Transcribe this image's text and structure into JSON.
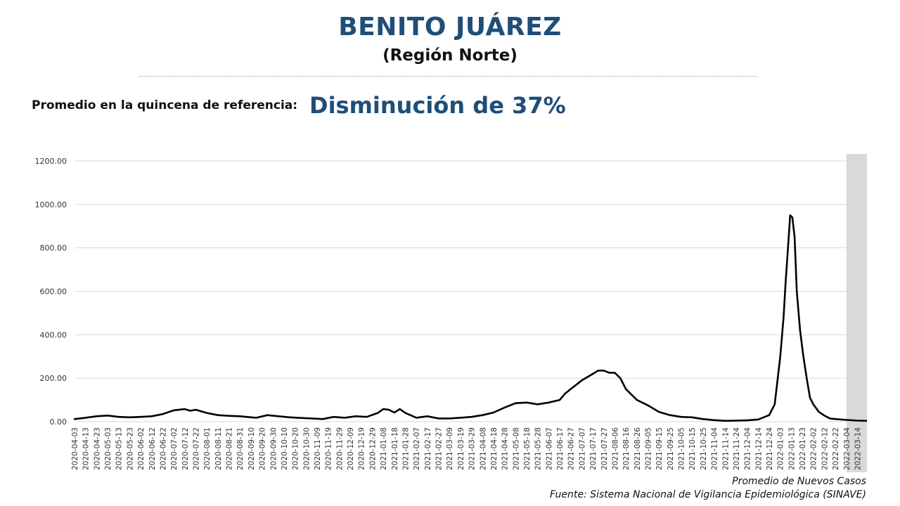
{
  "header": {
    "title": "BENITO JUÁREZ",
    "subtitle": "(Región Norte)"
  },
  "reference": {
    "label": "Promedio en la quincena de referencia:",
    "value": "Disminución de 37%"
  },
  "footer": {
    "series_label": "Promedio de Nuevos Casos",
    "source": "Fuente: Sistema Nacional de Vigilancia Epidemiológica (SINAVE)"
  },
  "colors": {
    "title": "#1f4e79",
    "line": "#000000",
    "shade": "#d9d9d9",
    "grid": "#d9d9d9"
  },
  "chart_data": {
    "type": "line",
    "x_start": "2020-04-03",
    "x_end": "2022-03-22",
    "tick_interval_days": 10,
    "ylim": [
      0,
      1200
    ],
    "yticks": [
      "0.00",
      "200.00",
      "400.00",
      "600.00",
      "800.00",
      "1000.00",
      "1200.00"
    ],
    "grid": true,
    "shaded_period": [
      "2022-03-04",
      "2022-03-22"
    ],
    "series": [
      {
        "points": [
          [
            "2020-04-03",
            12
          ],
          [
            "2020-04-13",
            18
          ],
          [
            "2020-04-23",
            25
          ],
          [
            "2020-05-03",
            28
          ],
          [
            "2020-05-13",
            22
          ],
          [
            "2020-05-23",
            20
          ],
          [
            "2020-06-02",
            22
          ],
          [
            "2020-06-12",
            25
          ],
          [
            "2020-06-22",
            35
          ],
          [
            "2020-07-02",
            52
          ],
          [
            "2020-07-12",
            58
          ],
          [
            "2020-07-17",
            50
          ],
          [
            "2020-07-22",
            55
          ],
          [
            "2020-08-01",
            40
          ],
          [
            "2020-08-11",
            30
          ],
          [
            "2020-08-21",
            27
          ],
          [
            "2020-08-31",
            25
          ],
          [
            "2020-09-10",
            20
          ],
          [
            "2020-09-15",
            18
          ],
          [
            "2020-09-25",
            30
          ],
          [
            "2020-10-05",
            25
          ],
          [
            "2020-10-15",
            20
          ],
          [
            "2020-10-25",
            17
          ],
          [
            "2020-11-04",
            15
          ],
          [
            "2020-11-14",
            12
          ],
          [
            "2020-11-24",
            22
          ],
          [
            "2020-12-04",
            18
          ],
          [
            "2020-12-14",
            25
          ],
          [
            "2020-12-24",
            22
          ],
          [
            "2021-01-03",
            40
          ],
          [
            "2021-01-08",
            58
          ],
          [
            "2021-01-13",
            55
          ],
          [
            "2021-01-18",
            42
          ],
          [
            "2021-01-23",
            58
          ],
          [
            "2021-01-28",
            40
          ],
          [
            "2021-02-07",
            18
          ],
          [
            "2021-02-17",
            25
          ],
          [
            "2021-02-27",
            15
          ],
          [
            "2021-03-09",
            15
          ],
          [
            "2021-03-19",
            18
          ],
          [
            "2021-03-29",
            22
          ],
          [
            "2021-04-08",
            30
          ],
          [
            "2021-04-18",
            42
          ],
          [
            "2021-04-28",
            65
          ],
          [
            "2021-05-08",
            85
          ],
          [
            "2021-05-18",
            88
          ],
          [
            "2021-05-28",
            80
          ],
          [
            "2021-06-07",
            88
          ],
          [
            "2021-06-17",
            100
          ],
          [
            "2021-06-22",
            130
          ],
          [
            "2021-06-27",
            150
          ],
          [
            "2021-07-07",
            190
          ],
          [
            "2021-07-17",
            220
          ],
          [
            "2021-07-22",
            235
          ],
          [
            "2021-07-27",
            235
          ],
          [
            "2021-08-01",
            225
          ],
          [
            "2021-08-06",
            225
          ],
          [
            "2021-08-11",
            200
          ],
          [
            "2021-08-16",
            150
          ],
          [
            "2021-08-26",
            100
          ],
          [
            "2021-09-05",
            75
          ],
          [
            "2021-09-15",
            45
          ],
          [
            "2021-09-25",
            30
          ],
          [
            "2021-10-05",
            22
          ],
          [
            "2021-10-15",
            20
          ],
          [
            "2021-10-25",
            12
          ],
          [
            "2021-11-04",
            7
          ],
          [
            "2021-11-14",
            4
          ],
          [
            "2021-11-24",
            5
          ],
          [
            "2021-12-04",
            6
          ],
          [
            "2021-12-14",
            10
          ],
          [
            "2021-12-24",
            30
          ],
          [
            "2021-12-29",
            80
          ],
          [
            "2022-01-03",
            300
          ],
          [
            "2022-01-06",
            480
          ],
          [
            "2022-01-08",
            650
          ],
          [
            "2022-01-10",
            800
          ],
          [
            "2022-01-12",
            950
          ],
          [
            "2022-01-14",
            940
          ],
          [
            "2022-01-16",
            850
          ],
          [
            "2022-01-18",
            600
          ],
          [
            "2022-01-21",
            420
          ],
          [
            "2022-01-24",
            300
          ],
          [
            "2022-01-27",
            200
          ],
          [
            "2022-01-30",
            110
          ],
          [
            "2022-02-02",
            80
          ],
          [
            "2022-02-07",
            45
          ],
          [
            "2022-02-12",
            28
          ],
          [
            "2022-02-17",
            15
          ],
          [
            "2022-02-22",
            12
          ],
          [
            "2022-03-04",
            8
          ],
          [
            "2022-03-14",
            5
          ],
          [
            "2022-03-22",
            4
          ]
        ]
      }
    ]
  }
}
